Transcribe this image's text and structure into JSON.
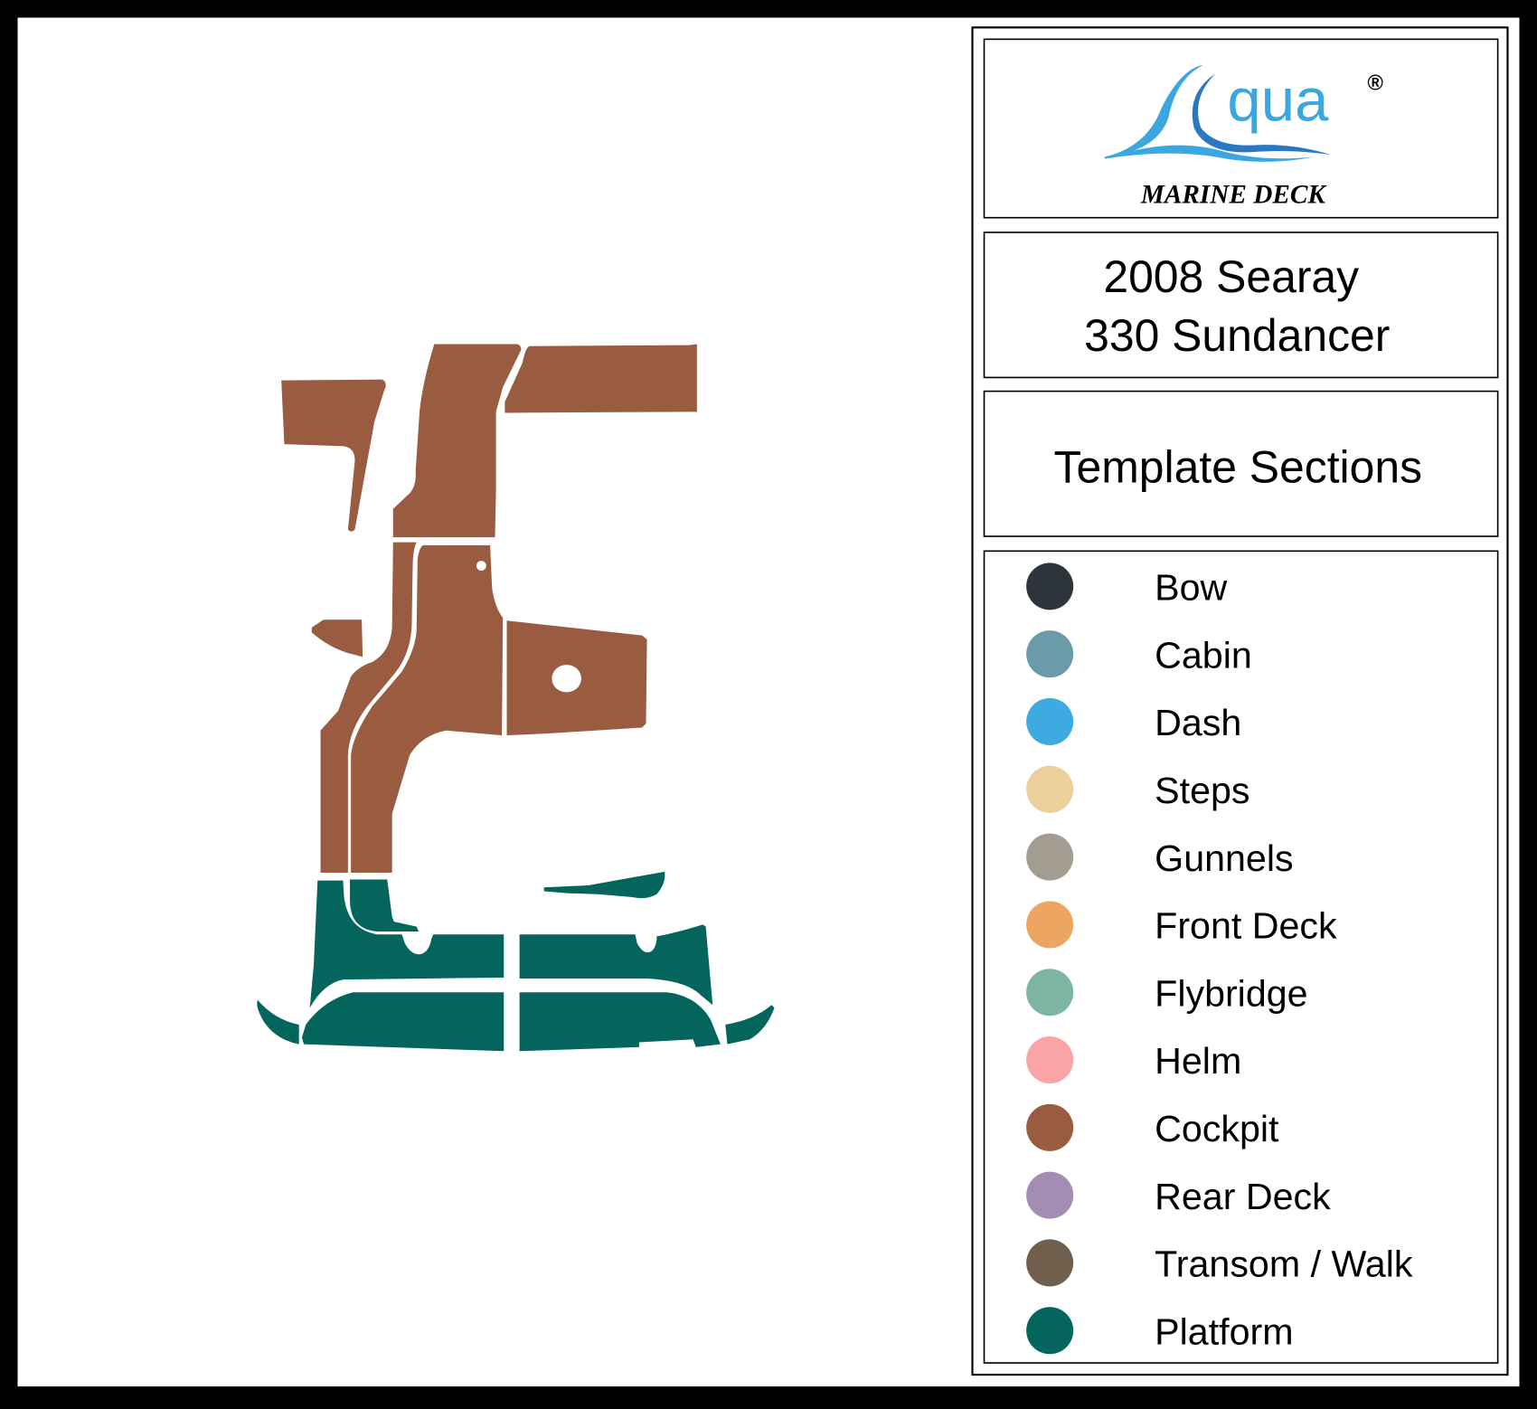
{
  "logo": {
    "brand_letter_text": "qua",
    "registered_mark": "®",
    "tagline": "MARINE DECK",
    "colors": {
      "light_blue": "#3ba7e0",
      "dark_blue": "#2a78c4"
    }
  },
  "boat": {
    "line1": "2008 Searay",
    "line2": "330 Sundancer"
  },
  "section_heading": "Template Sections",
  "legend": [
    {
      "label": "Bow",
      "color": "#2d343c"
    },
    {
      "label": "Cabin",
      "color": "#6b9aa9"
    },
    {
      "label": "Dash",
      "color": "#3eaae2"
    },
    {
      "label": "Steps",
      "color": "#edcf9c"
    },
    {
      "label": "Gunnels",
      "color": "#a39d91"
    },
    {
      "label": "Front Deck",
      "color": "#eda662"
    },
    {
      "label": "Flybridge",
      "color": "#7db5a4"
    },
    {
      "label": "Helm",
      "color": "#f9a5a6"
    },
    {
      "label": "Cockpit",
      "color": "#995c40"
    },
    {
      "label": "Rear Deck",
      "color": "#a38db3"
    },
    {
      "label": "Transom / Walk",
      "color": "#6f5f4c"
    },
    {
      "label": "Platform",
      "color": "#03655b"
    }
  ],
  "diagram": {
    "sections_shown": [
      "Cockpit",
      "Platform"
    ]
  }
}
